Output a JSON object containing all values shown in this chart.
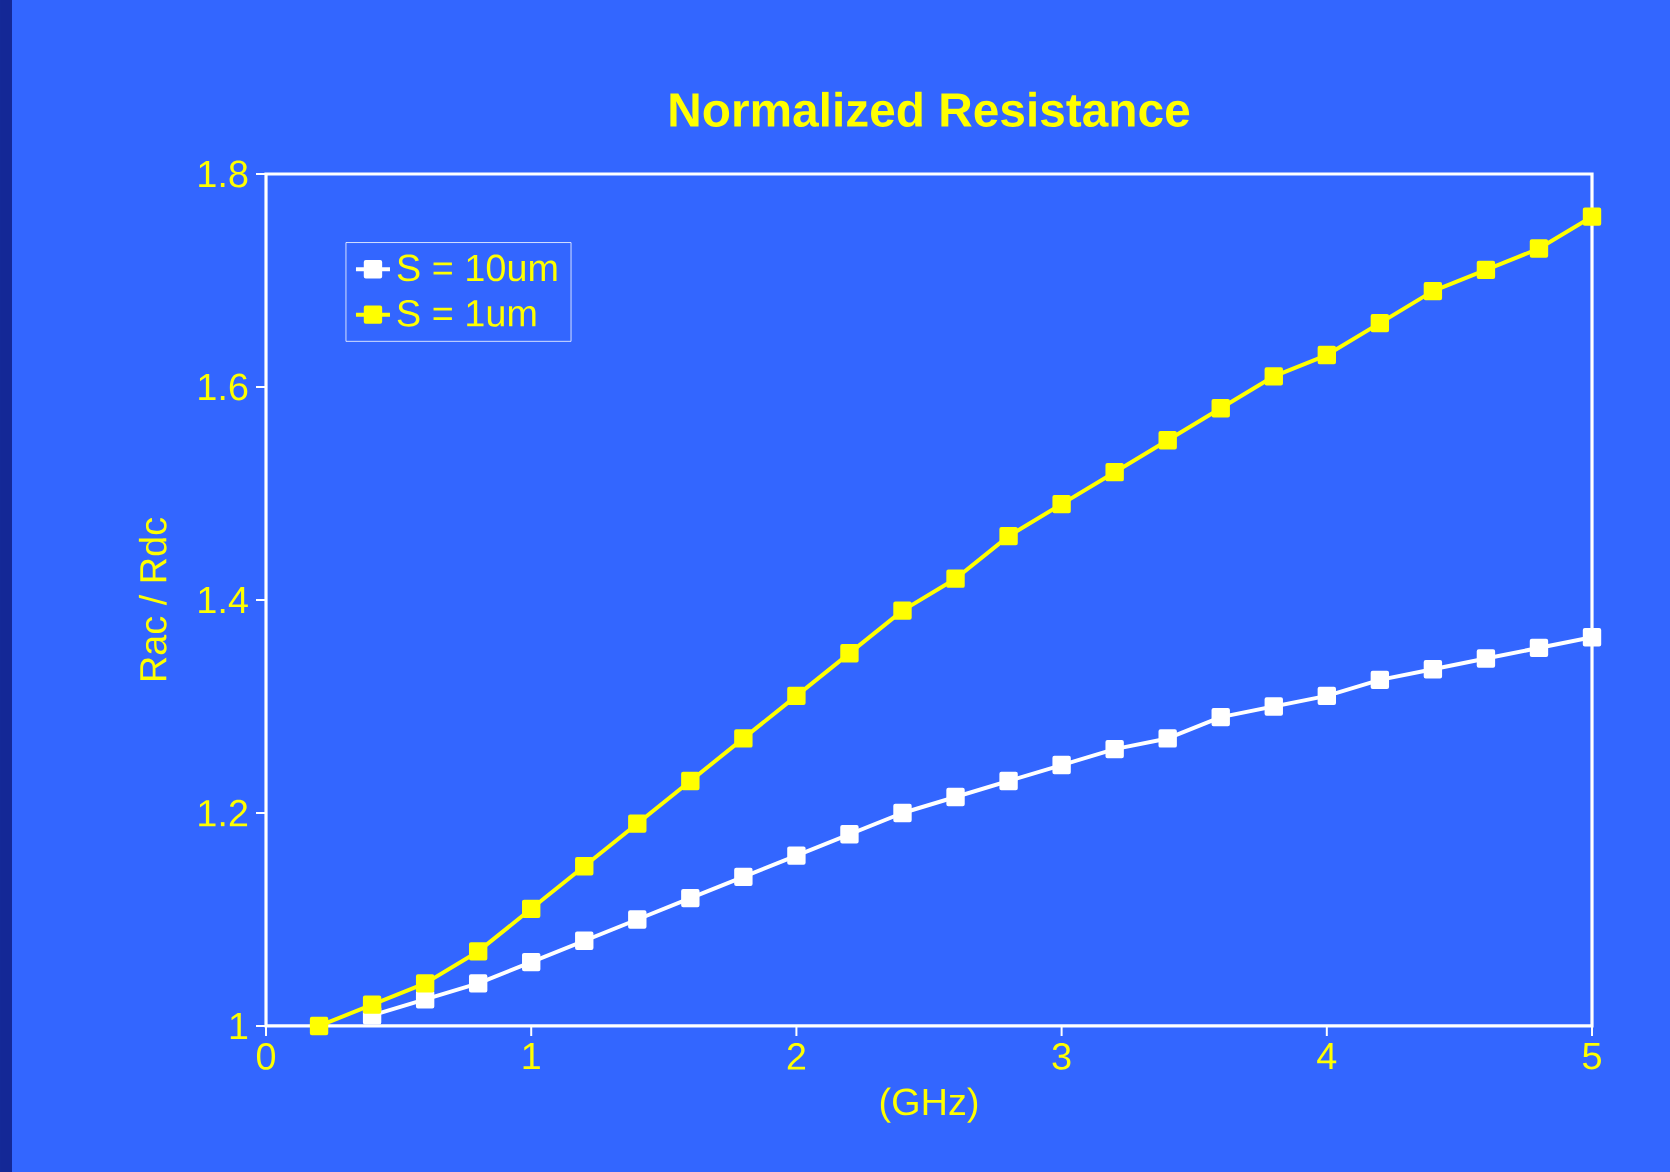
{
  "chart_data": {
    "type": "line",
    "title": "Normalized Resistance",
    "xlabel": "(GHz)",
    "ylabel": "Rac / Rdc",
    "x": [
      0.2,
      0.4,
      0.6,
      0.8,
      1.0,
      1.2,
      1.4,
      1.6,
      1.8,
      2.0,
      2.2,
      2.4,
      2.6,
      2.8,
      3.0,
      3.2,
      3.4,
      3.6,
      3.8,
      4.0,
      4.2,
      4.4,
      4.6,
      4.8,
      5.0
    ],
    "series": [
      {
        "name": "S = 10um",
        "color": "#ffffff",
        "values": [
          null,
          1.01,
          1.025,
          1.04,
          1.06,
          1.08,
          1.1,
          1.12,
          1.14,
          1.16,
          1.18,
          1.2,
          1.215,
          1.23,
          1.245,
          1.26,
          1.27,
          1.29,
          1.3,
          1.31,
          1.325,
          1.335,
          1.345,
          1.355,
          1.365
        ]
      },
      {
        "name": "S = 1um",
        "color": "#ffff00",
        "values": [
          1.0,
          1.02,
          1.04,
          1.07,
          1.11,
          1.15,
          1.19,
          1.23,
          1.27,
          1.31,
          1.35,
          1.39,
          1.42,
          1.46,
          1.49,
          1.52,
          1.55,
          1.58,
          1.61,
          1.63,
          1.66,
          1.69,
          1.71,
          1.73,
          1.76
        ]
      }
    ],
    "xlim": [
      0,
      5
    ],
    "ylim": [
      1,
      1.8
    ],
    "xticks": [
      0,
      1,
      2,
      3,
      4,
      5
    ],
    "yticks": [
      1,
      1.2,
      1.4,
      1.6,
      1.8
    ],
    "legend": "top left",
    "marker": "square",
    "line_style": "solid"
  }
}
